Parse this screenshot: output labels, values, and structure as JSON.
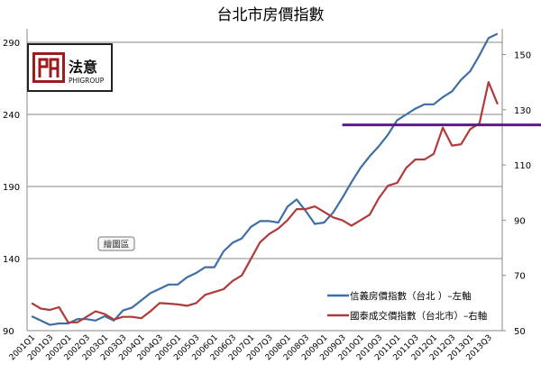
{
  "chart_data": {
    "type": "line",
    "title": "台北市房價指數",
    "categories": [
      "2001Q1",
      "2001Q2",
      "2001Q3",
      "2001Q4",
      "2002Q1",
      "2002Q2",
      "2002Q3",
      "2002Q4",
      "2003Q1",
      "2003Q2",
      "2003Q3",
      "2003Q4",
      "2004Q1",
      "2004Q2",
      "2004Q3",
      "2004Q4",
      "2005Q1",
      "2005Q2",
      "2005Q3",
      "2005Q4",
      "2006Q1",
      "2006Q2",
      "2006Q3",
      "2006Q4",
      "2007Q1",
      "2007Q2",
      "2007Q3",
      "2007Q4",
      "2008Q1",
      "2008Q2",
      "2008Q3",
      "2008Q4",
      "2009Q1",
      "2009Q2",
      "2009Q3",
      "2009Q4",
      "2010Q1",
      "2010Q2",
      "2010Q3",
      "2010Q4",
      "2011Q1",
      "2011Q2",
      "2011Q3",
      "2011Q4",
      "2012Q1",
      "2012Q2",
      "2012Q3",
      "2012Q4",
      "2013Q1",
      "2013Q2",
      "2013Q3",
      "2013Q4"
    ],
    "x_tick_labels": [
      "2001Q1",
      "2001Q3",
      "2002Q1",
      "2002Q3",
      "2003Q1",
      "2003Q3",
      "2004Q1",
      "2004Q3",
      "2005Q1",
      "2005Q3",
      "2006Q1",
      "2006Q3",
      "2007Q1",
      "2007Q3",
      "2008Q1",
      "2008Q3",
      "2009Q1",
      "2009Q3",
      "2010Q1",
      "2010Q3",
      "2011Q1",
      "2011Q3",
      "2012Q1",
      "2012Q3",
      "2013Q1",
      "2013Q3"
    ],
    "series": [
      {
        "name": "信義房價指數（台北 ）–左軸",
        "axis": "left",
        "color": "#3f6ea6",
        "values": [
          100,
          97,
          94,
          95,
          95,
          98,
          98,
          97,
          100,
          97,
          104,
          106,
          111,
          116,
          119,
          122,
          122,
          127,
          130,
          134,
          134,
          145,
          151,
          154,
          162,
          166,
          166,
          165,
          176,
          181,
          173,
          164,
          165,
          172,
          182,
          193,
          203,
          211,
          218,
          226,
          236,
          240,
          244,
          247,
          247,
          252,
          256,
          264,
          270,
          281,
          293,
          296
        ]
      },
      {
        "name": "國泰成交價指數（台北市）–右軸",
        "axis": "right",
        "color": "#b03a3a",
        "values": [
          60,
          58,
          57.5,
          58.5,
          53,
          53,
          55,
          57,
          56,
          54,
          55,
          55,
          54.5,
          57,
          60,
          59.8,
          59.5,
          59,
          60,
          63,
          64,
          65,
          68,
          70,
          76,
          82,
          85,
          87,
          90,
          94,
          94,
          95,
          93,
          91,
          90,
          88,
          90,
          92,
          98,
          102.5,
          103.5,
          109,
          112,
          112,
          114,
          123.5,
          117,
          117.5,
          123,
          125,
          140,
          132
        ]
      }
    ],
    "y_left": {
      "ticks": [
        90,
        140,
        190,
        240,
        290
      ],
      "range": [
        90,
        290
      ]
    },
    "y_right": {
      "ticks": [
        50,
        70,
        90,
        110,
        130,
        150
      ],
      "range": [
        50,
        155
      ]
    },
    "reference_line": {
      "axis": "right",
      "value": 124.5,
      "color": "#5b1a8c",
      "from_category": "2009Q3"
    },
    "grid": "horizontal (left axis)",
    "legend_position": "bottom-right"
  },
  "logo": {
    "chinese": "法意",
    "english": "PHIGROUP",
    "color": "#9b1b1f"
  },
  "tooltip": {
    "label": "繪圖區"
  }
}
